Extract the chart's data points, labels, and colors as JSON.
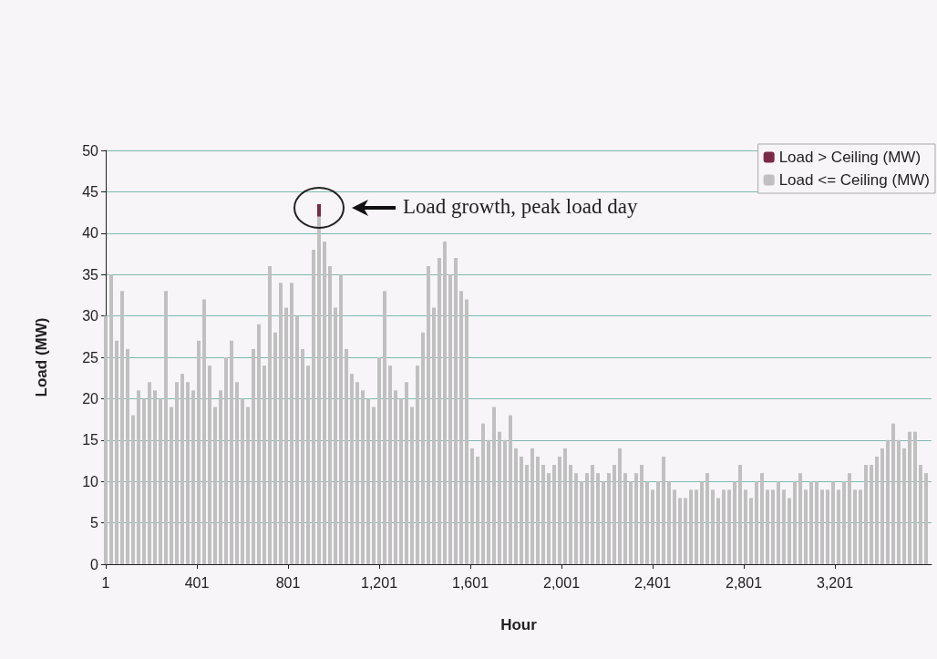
{
  "chart_data": {
    "type": "bar",
    "stacked": true,
    "xlabel": "Hour",
    "ylabel": "Load (MW)",
    "x": [
      1,
      25,
      49,
      73,
      97,
      121,
      145,
      169,
      193,
      217,
      241,
      265,
      289,
      313,
      337,
      361,
      385,
      409,
      433,
      457,
      481,
      505,
      529,
      553,
      577,
      601,
      625,
      649,
      673,
      697,
      721,
      745,
      769,
      793,
      817,
      841,
      865,
      889,
      913,
      937,
      961,
      985,
      1009,
      1033,
      1057,
      1081,
      1105,
      1129,
      1153,
      1177,
      1201,
      1225,
      1249,
      1273,
      1297,
      1321,
      1345,
      1369,
      1393,
      1417,
      1441,
      1465,
      1489,
      1513,
      1537,
      1561,
      1585,
      1609,
      1633,
      1657,
      1681,
      1705,
      1729,
      1753,
      1777,
      1801,
      1825,
      1849,
      1873,
      1897,
      1921,
      1945,
      1969,
      1993,
      2017,
      2041,
      2065,
      2089,
      2113,
      2137,
      2161,
      2185,
      2209,
      2233,
      2257,
      2281,
      2305,
      2329,
      2353,
      2377,
      2401,
      2425,
      2449,
      2473,
      2497,
      2521,
      2545,
      2569,
      2593,
      2617,
      2641,
      2665,
      2689,
      2713,
      2737,
      2761,
      2785,
      2809,
      2833,
      2857,
      2881,
      2905,
      2929,
      2953,
      2977,
      3001,
      3025,
      3049,
      3073,
      3097,
      3121,
      3145,
      3169,
      3193,
      3217,
      3241,
      3265,
      3289,
      3313,
      3337,
      3361,
      3385,
      3409,
      3433,
      3457,
      3481,
      3505,
      3529,
      3553,
      3577,
      3601
    ],
    "series": [
      {
        "name": "Load <= Ceiling (MW)",
        "color": "#c0c0c0",
        "values": [
          30,
          35,
          27,
          33,
          26,
          18,
          21,
          20,
          22,
          21,
          20,
          33,
          19,
          22,
          23,
          22,
          21,
          27,
          32,
          24,
          19,
          21,
          25,
          27,
          22,
          20,
          19,
          26,
          29,
          24,
          36,
          28,
          34,
          31,
          34,
          30,
          26,
          24,
          38,
          42,
          39,
          36,
          31,
          35,
          26,
          23,
          22,
          21,
          20,
          19,
          25,
          33,
          24,
          21,
          20,
          22,
          19,
          24,
          28,
          36,
          31,
          37,
          39,
          35,
          37,
          33,
          32,
          14,
          13,
          17,
          15,
          19,
          16,
          15,
          18,
          14,
          13,
          12,
          14,
          13,
          12,
          11,
          12,
          13,
          14,
          12,
          11,
          10,
          11,
          12,
          11,
          10,
          11,
          12,
          14,
          11,
          10,
          11,
          12,
          10,
          9,
          10,
          13,
          10,
          9,
          8,
          8,
          9,
          9,
          10,
          11,
          9,
          8,
          9,
          9,
          10,
          12,
          9,
          8,
          10,
          11,
          9,
          9,
          10,
          9,
          8,
          10,
          11,
          9,
          10,
          10,
          9,
          9,
          10,
          9,
          10,
          11,
          9,
          9,
          12,
          12,
          13,
          14,
          15,
          17,
          15,
          14,
          16,
          16,
          12,
          11
        ]
      },
      {
        "name": "Load > Ceiling (MW)",
        "color": "#7a2a45",
        "values": [
          null,
          null,
          null,
          null,
          null,
          null,
          null,
          null,
          null,
          null,
          null,
          null,
          null,
          null,
          null,
          null,
          null,
          null,
          null,
          null,
          null,
          null,
          null,
          null,
          null,
          null,
          null,
          null,
          null,
          null,
          null,
          null,
          null,
          null,
          null,
          null,
          null,
          null,
          null,
          1.5,
          null,
          null,
          null,
          null,
          null,
          null,
          null,
          null,
          null,
          null,
          null,
          null,
          null,
          null,
          null,
          null,
          null,
          null,
          null,
          null,
          null,
          null,
          null,
          null,
          null,
          null,
          null,
          null,
          null,
          null,
          null,
          null,
          null,
          null,
          null,
          null,
          null,
          null,
          null,
          null,
          null,
          null,
          null,
          null,
          null,
          null,
          null,
          null,
          null,
          null,
          null,
          null,
          null,
          null,
          null,
          null,
          null,
          null,
          null,
          null,
          null,
          null,
          null,
          null,
          null,
          null,
          null,
          null,
          null,
          null,
          null,
          null,
          null,
          null,
          null,
          null,
          null,
          null,
          null,
          null,
          null,
          null,
          null,
          null,
          null,
          null,
          null,
          null,
          null,
          null,
          null,
          null,
          null,
          null,
          null,
          null,
          null,
          null,
          null,
          null,
          null,
          null,
          null,
          null,
          null,
          null,
          null,
          null,
          null,
          null,
          null
        ]
      }
    ],
    "xlim": [
      1,
      3625
    ],
    "xticks": [
      1,
      401,
      801,
      {
        "value": 1201,
        "label": "1,201"
      },
      {
        "value": 1601,
        "label": "1,601"
      },
      {
        "value": 2001,
        "label": "2,001"
      },
      {
        "value": 2401,
        "label": "2,401"
      },
      {
        "value": 2801,
        "label": "2,801"
      },
      {
        "value": 3201,
        "label": "3,201"
      }
    ],
    "ylim": [
      0,
      50
    ],
    "yticks": [
      0,
      5,
      10,
      15,
      20,
      25,
      30,
      35,
      40,
      45,
      50
    ],
    "grid": "y",
    "legend": "top right",
    "annotations": [
      "Load growth, peak load day"
    ]
  }
}
